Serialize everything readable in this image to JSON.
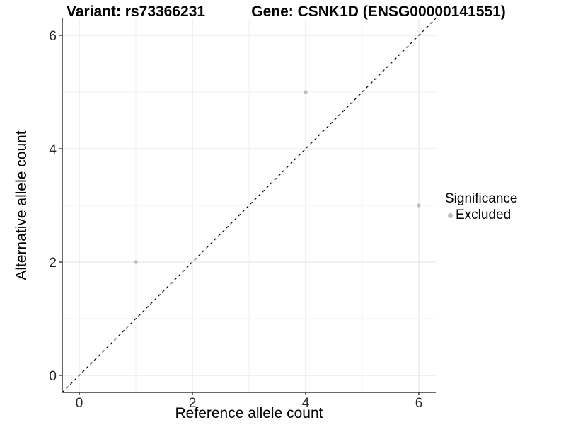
{
  "chart_data": {
    "type": "scatter",
    "title_left": "Variant: rs73366231",
    "title_right": "Gene: CSNK1D (ENSG00000141551)",
    "xlabel": "Reference allele count",
    "ylabel": "Alternative allele count",
    "xlim": [
      -0.3,
      6.3
    ],
    "ylim": [
      -0.3,
      6.3
    ],
    "xticks": [
      0,
      2,
      4,
      6
    ],
    "yticks": [
      0,
      2,
      4,
      6
    ],
    "x_minor_ticks": [
      1,
      3,
      5
    ],
    "y_minor_ticks": [
      1,
      3,
      5
    ],
    "grid": true,
    "series": [
      {
        "name": "Excluded",
        "color": "#bebebe",
        "points": [
          {
            "x": 1,
            "y": 2
          },
          {
            "x": 4,
            "y": 5
          },
          {
            "x": 6,
            "y": 3
          }
        ]
      }
    ],
    "reference_line": {
      "type": "identity",
      "slope": 1,
      "intercept": 0,
      "style": "dashed",
      "color": "#000000"
    },
    "legend": {
      "title": "Significance",
      "position": "right",
      "entries": [
        {
          "label": "Excluded",
          "color": "#bebebe"
        }
      ]
    }
  },
  "colors": {
    "background": "#ffffff",
    "axis_line": "#555555",
    "tick_mark": "#333333",
    "tick_label": "#262626",
    "grid_major": "#e3e3e3",
    "grid_minor": "#f1f1f1"
  }
}
